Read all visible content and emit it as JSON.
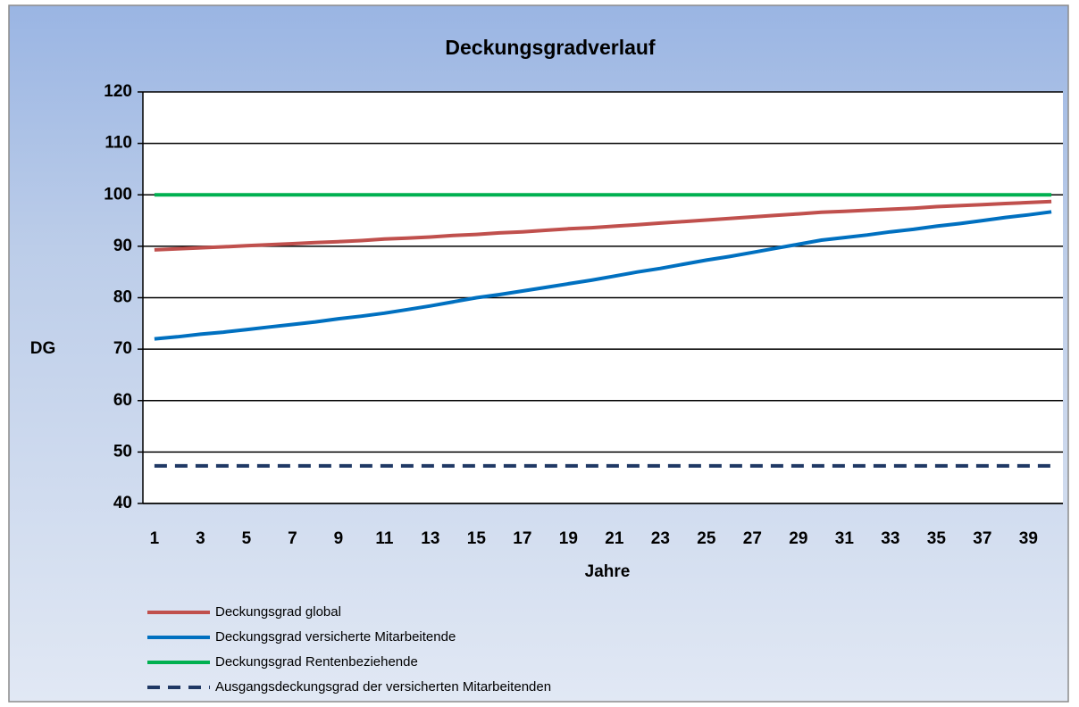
{
  "chart_data": {
    "type": "line",
    "title": "Deckungsgradverlauf",
    "x_label": "Jahre",
    "y_label": "DG",
    "categories": [
      "1",
      null,
      "3",
      null,
      "5",
      null,
      "7",
      null,
      "9",
      null,
      "11",
      null,
      "13",
      null,
      "15",
      null,
      "17",
      null,
      "19",
      null,
      "21",
      null,
      "23",
      null,
      "25",
      null,
      "27",
      null,
      "29",
      null,
      "31",
      null,
      "33",
      null,
      "35",
      null,
      "37",
      null,
      "39",
      null
    ],
    "ylim": [
      40,
      120
    ],
    "yticks": [
      40,
      50,
      60,
      70,
      80,
      90,
      100,
      110,
      120
    ],
    "grid": true,
    "legend": "bottom",
    "series": [
      {
        "name": "Deckungsgrad global",
        "color": "#c0504d",
        "style": "solid",
        "values": [
          89.3,
          89.5,
          89.7,
          89.9,
          90.1,
          90.3,
          90.5,
          90.7,
          90.9,
          91.1,
          91.4,
          91.6,
          91.8,
          92.1,
          92.3,
          92.6,
          92.8,
          93.1,
          93.4,
          93.6,
          93.9,
          94.2,
          94.5,
          94.8,
          95.1,
          95.4,
          95.7,
          96.0,
          96.3,
          96.6,
          96.8,
          97.0,
          97.2,
          97.4,
          97.7,
          97.9,
          98.1,
          98.3,
          98.5,
          98.7
        ]
      },
      {
        "name": "Deckungsgrad versicherte Mitarbeitende",
        "color": "#0070c0",
        "style": "solid",
        "values": [
          72.0,
          72.4,
          72.9,
          73.3,
          73.8,
          74.3,
          74.8,
          75.3,
          75.9,
          76.4,
          77.0,
          77.7,
          78.4,
          79.2,
          80.0,
          80.6,
          81.3,
          82.0,
          82.7,
          83.4,
          84.2,
          85.0,
          85.7,
          86.5,
          87.3,
          88.0,
          88.8,
          89.6,
          90.4,
          91.2,
          91.7,
          92.2,
          92.8,
          93.3,
          93.9,
          94.4,
          95.0,
          95.6,
          96.1,
          96.7
        ]
      },
      {
        "name": "Deckungsgrad Rentenbeziehende",
        "color": "#00b050",
        "style": "solid",
        "values": [
          100,
          100,
          100,
          100,
          100,
          100,
          100,
          100,
          100,
          100,
          100,
          100,
          100,
          100,
          100,
          100,
          100,
          100,
          100,
          100,
          100,
          100,
          100,
          100,
          100,
          100,
          100,
          100,
          100,
          100,
          100,
          100,
          100,
          100,
          100,
          100,
          100,
          100,
          100,
          100
        ]
      },
      {
        "name": "Ausgangsdeckungsgrad der versicherten Mitarbeitenden",
        "color": "#1f3864",
        "style": "dashed",
        "values": [
          47.3,
          47.3,
          47.3,
          47.3,
          47.3,
          47.3,
          47.3,
          47.3,
          47.3,
          47.3,
          47.3,
          47.3,
          47.3,
          47.3,
          47.3,
          47.3,
          47.3,
          47.3,
          47.3,
          47.3,
          47.3,
          47.3,
          47.3,
          47.3,
          47.3,
          47.3,
          47.3,
          47.3,
          47.3,
          47.3,
          47.3,
          47.3,
          47.3,
          47.3,
          47.3,
          47.3,
          47.3,
          47.3,
          47.3,
          47.3
        ]
      }
    ]
  }
}
